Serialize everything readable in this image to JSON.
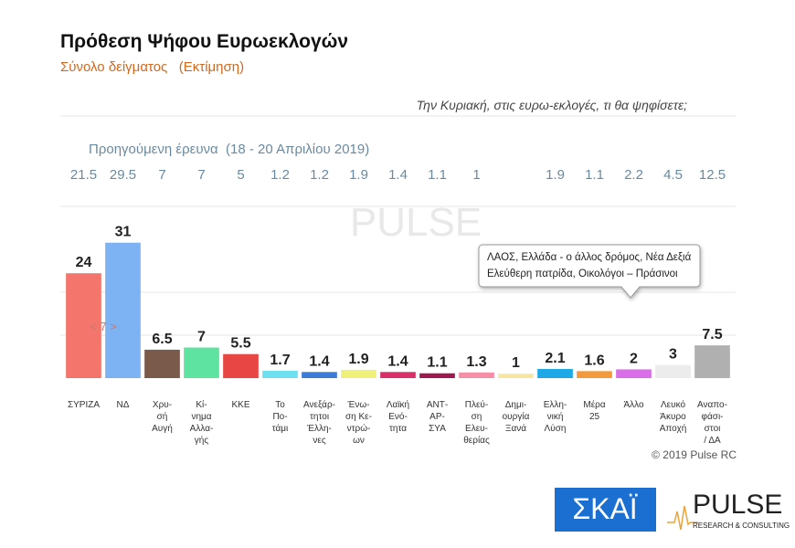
{
  "chart_data": {
    "type": "bar",
    "title": "Πρόθεση Ψήφου Ευρωεκλογών",
    "subtitle": "Σύνολο δείγματος   (Εκτίμηση)",
    "question": "Την Κυριακή, στις ευρω-εκλογές, τι θα ψηφίσετε;",
    "categories": [
      [
        "ΣΥΡΙΖΑ"
      ],
      [
        "ΝΔ"
      ],
      [
        "Χρυ-",
        "σή",
        "Αυγή"
      ],
      [
        "Κί-",
        "νημα",
        "Αλλα-",
        "γής"
      ],
      [
        "ΚΚΕ"
      ],
      [
        "Το",
        "Πο-",
        "τάμι"
      ],
      [
        "Ανεξάρ-",
        "τητοι",
        "Έλλη-",
        "νες"
      ],
      [
        "Ένω-",
        "ση Κε-",
        "ντρώ-",
        "ων"
      ],
      [
        "Λαϊκή",
        "Ενό-",
        "τητα"
      ],
      [
        "ΑΝΤ-",
        "ΑΡ-",
        "ΣΥΑ"
      ],
      [
        "Πλεύ-",
        "ση",
        "Ελευ-",
        "θερίας"
      ],
      [
        "Δημι-",
        "ουργία",
        "Ξανά"
      ],
      [
        "Ελλη-",
        "νική",
        "Λύση"
      ],
      [
        "Μέρα",
        "25"
      ],
      [
        "Άλλο"
      ],
      [
        "Λευκό",
        "Άκυρο",
        "Αποχή"
      ],
      [
        "Αναπο-",
        "φάσι-",
        "στοι",
        "/ ΔΑ"
      ]
    ],
    "values": [
      24,
      31,
      6.5,
      7,
      5.5,
      1.7,
      1.4,
      1.9,
      1.4,
      1.1,
      1.3,
      1,
      2.1,
      1.6,
      2,
      3,
      7.5
    ],
    "colors": [
      "#f4756b",
      "#7eb3f3",
      "#7a5a4a",
      "#5fe3a0",
      "#e84545",
      "#6fe0f0",
      "#3d7bd8",
      "#eef07a",
      "#d9306a",
      "#a01850",
      "#f58fa8",
      "#f8e6a0",
      "#1ea8e6",
      "#f39a3c",
      "#da6ee8",
      "#ececec",
      "#b0b0b0"
    ],
    "ylim": [
      0,
      60
    ],
    "previous": {
      "name": "Προηγούμενη έρευνα  (18 - 20 Απριλίου 2019)",
      "values": [
        21.5,
        29.5,
        7,
        7,
        5,
        1.2,
        1.2,
        1.9,
        1.4,
        1.1,
        1,
        null,
        1.9,
        1.1,
        2.2,
        4.5,
        12.5
      ]
    },
    "annotations": {
      "bar_overlay": "< 7 >",
      "tooltip": [
        "ΛΑΟΣ, Ελλάδα - ο άλλος δρόμος, Νέα Δεξιά",
        "Ελεύθερη πατρίδα, Οικολόγοι – Πράσινοι"
      ]
    },
    "copyright": "© 2019 Pulse RC",
    "logos": {
      "skai": "ΣΚΑΪ",
      "pulse": "PULSE",
      "pulse_sub": "RESEARCH & CONSULTING"
    }
  }
}
